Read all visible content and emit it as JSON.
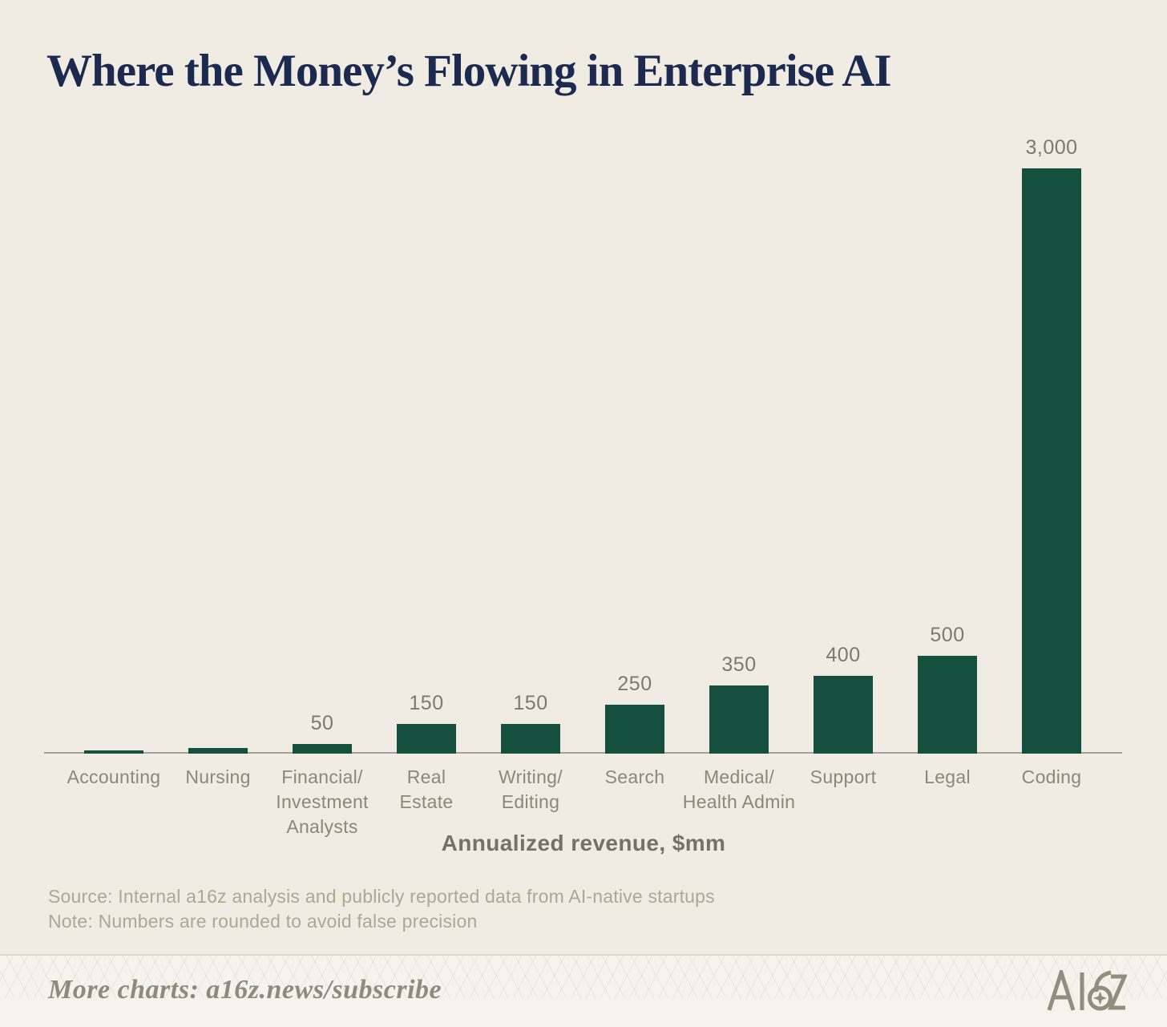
{
  "page": {
    "background_color": "#f0ece3",
    "footer_background_color": "#f6f3ec"
  },
  "title": "Where the Money’s Flowing in Enterprise AI",
  "chart_data": {
    "type": "bar",
    "title": "Where the Money’s Flowing in Enterprise AI",
    "xlabel": "Annualized revenue, $mm",
    "ylabel": "",
    "categories": [
      "Accounting",
      "Nursing",
      "Financial/Investment Analysts",
      "Real Estate",
      "Writing/Editing",
      "Search",
      "Medical/Health Admin",
      "Support",
      "Legal",
      "Coding"
    ],
    "category_lines": [
      [
        "Accounting"
      ],
      [
        "Nursing"
      ],
      [
        "Financial/",
        "Investment",
        "Analysts"
      ],
      [
        "Real",
        "Estate"
      ],
      [
        "Writing/",
        "Editing"
      ],
      [
        "Search"
      ],
      [
        "Medical/",
        "Health Admin"
      ],
      [
        "Support"
      ],
      [
        "Legal"
      ],
      [
        "Coding"
      ]
    ],
    "values": [
      15,
      30,
      50,
      150,
      150,
      250,
      350,
      400,
      500,
      3000
    ],
    "value_labels": [
      "",
      "",
      "50",
      "150",
      "150",
      "250",
      "350",
      "400",
      "500",
      "3,000"
    ],
    "ylim": [
      0,
      3000
    ],
    "grid": false,
    "legend": false,
    "bar_color": "#15503f",
    "axis_color": "#a5a198",
    "category_label_color": "#8b877b",
    "value_label_color": "#7d796e",
    "title_color": "#1b2a4e"
  },
  "source": {
    "line1": "Source: Internal a16z analysis and publicly reported data from AI-native startups",
    "line2": "Note: Numbers are rounded to avoid false precision"
  },
  "footer": {
    "more_charts": "More charts: a16z.news/subscribe",
    "logo_text": "A16Z",
    "logo_color": "#918d80"
  }
}
